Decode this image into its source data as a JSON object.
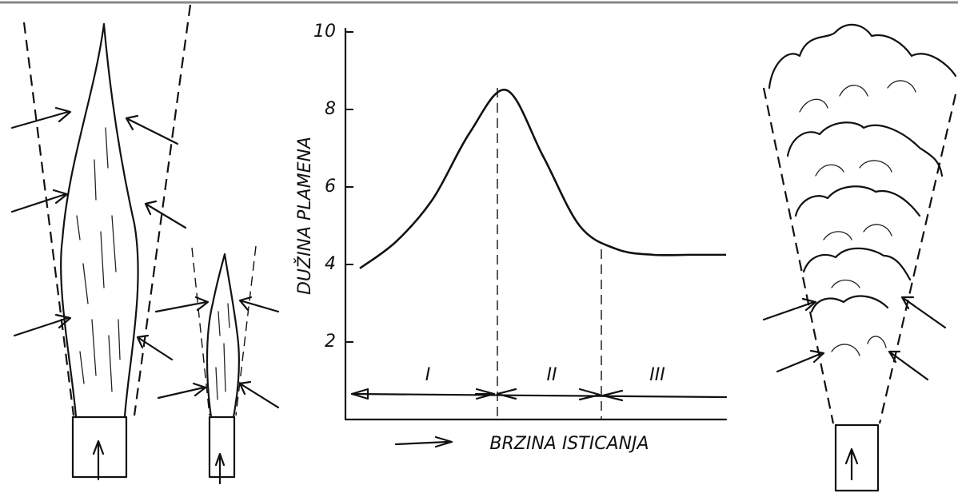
{
  "chart_data": {
    "type": "line",
    "y_label": "DUŽINA PLAMENA",
    "x_label": "BRZINA ISTICANJA",
    "regions": [
      "I",
      "II",
      "III"
    ],
    "categories": [
      null,
      null,
      null,
      null,
      null,
      null,
      null,
      null,
      null,
      null,
      null
    ],
    "values": [
      3.9,
      4.6,
      5.7,
      7.4,
      8.5,
      6.8,
      5.0,
      4.4,
      4.25,
      4.25,
      4.25
    ],
    "color": "#111111",
    "ylim": [
      0,
      10
    ],
    "yticks": [
      2,
      4,
      6,
      8,
      10
    ]
  }
}
